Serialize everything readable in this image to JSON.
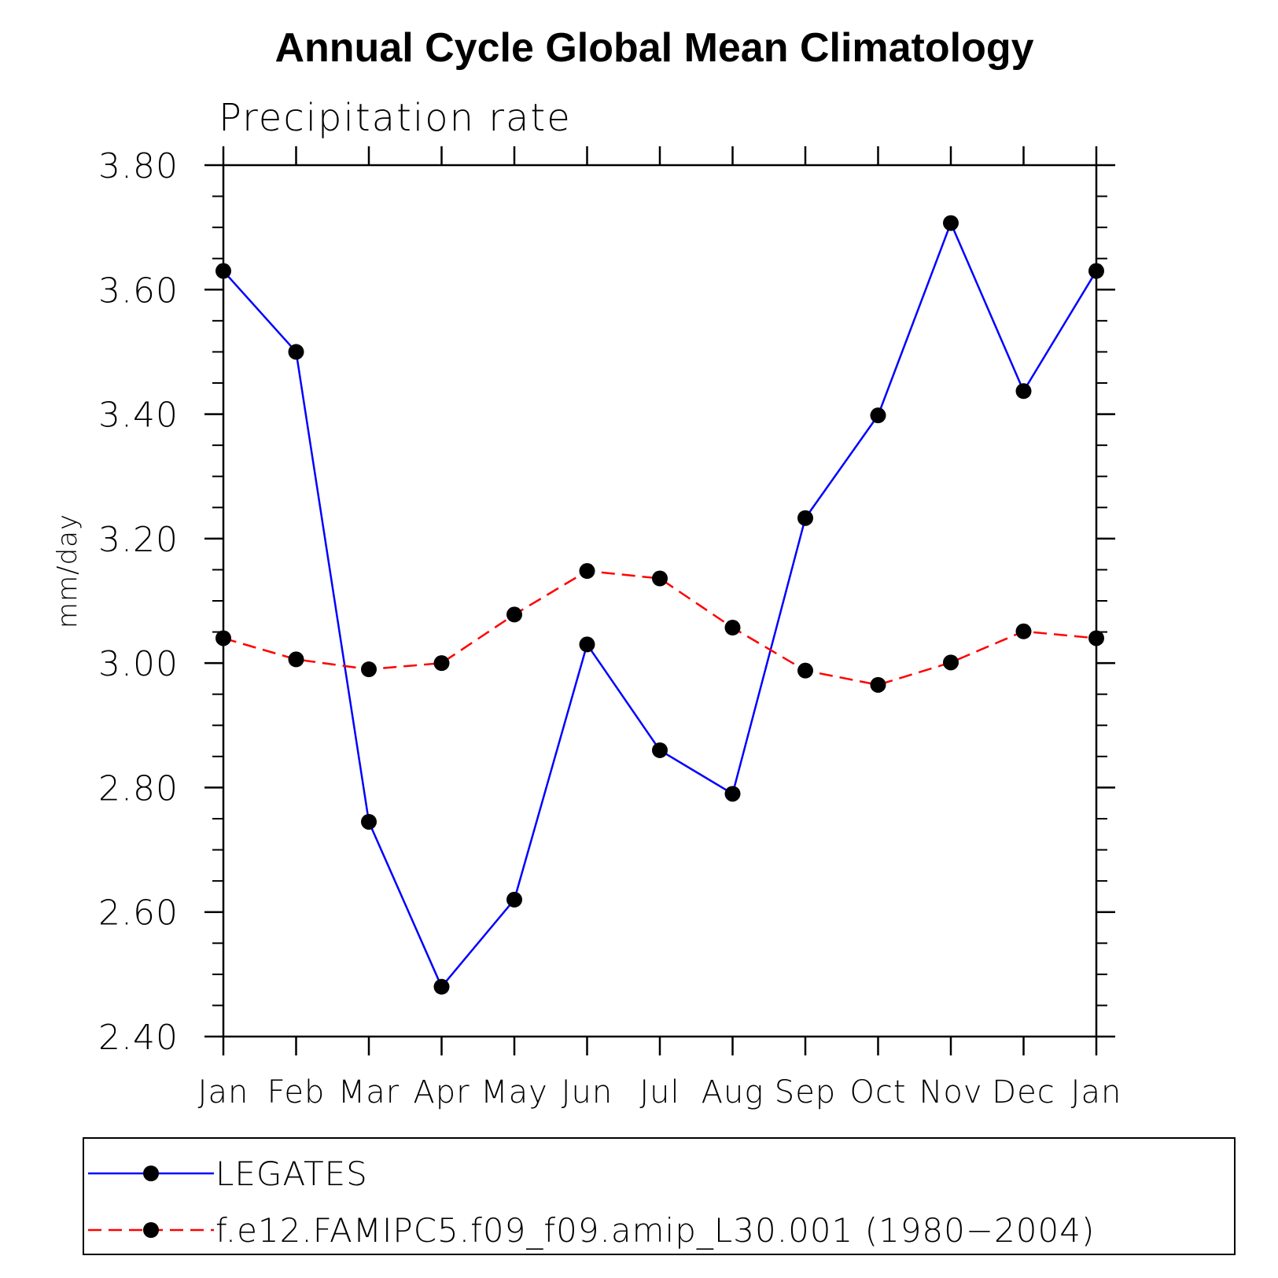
{
  "chart_data": {
    "type": "line",
    "title": "Annual Cycle Global Mean Climatology",
    "subtitle": "Precipitation rate",
    "xlabel": "",
    "ylabel": "mm/day",
    "categories": [
      "Jan",
      "Feb",
      "Mar",
      "Apr",
      "May",
      "Jun",
      "Jul",
      "Aug",
      "Sep",
      "Oct",
      "Nov",
      "Dec",
      "Jan"
    ],
    "ylim": [
      2.4,
      3.8
    ],
    "yticks": [
      "2.40",
      "2.60",
      "2.80",
      "3.00",
      "3.20",
      "3.40",
      "3.60",
      "3.80"
    ],
    "yminor_step": 0.05,
    "series": [
      {
        "name": "LEGATES",
        "color": "#0000ff",
        "dash": "solid",
        "values": [
          3.63,
          3.5,
          2.745,
          2.48,
          2.62,
          3.03,
          2.86,
          2.79,
          3.233,
          3.398,
          3.707,
          3.437,
          3.63
        ]
      },
      {
        "name": "f.e12.FAMIPC5.f09_f09.amip_L30.001 (1980−2004)",
        "color": "#ff0000",
        "dash": "dashed",
        "values": [
          3.04,
          3.006,
          2.99,
          3.0,
          3.078,
          3.148,
          3.136,
          3.057,
          2.988,
          2.965,
          3.001,
          3.051,
          3.04
        ]
      }
    ],
    "legend_position": "bottom"
  }
}
